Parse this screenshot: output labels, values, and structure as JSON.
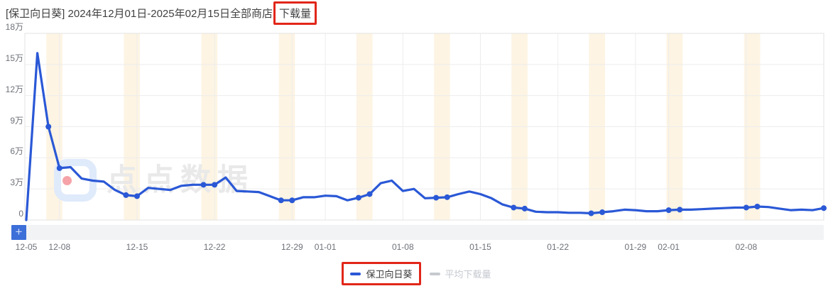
{
  "header": {
    "title_main": "[保卫向日葵] 2024年12月01日-2025年02月15日全部商店",
    "title_highlighted": "下载量"
  },
  "chart_data": {
    "type": "line",
    "title": "[保卫向日葵] 2024年12月01日-2025年02月15日全部商店下载量",
    "unit": "万",
    "ylim_wan": [
      0,
      18
    ],
    "y_tick_labels": [
      "18万",
      "15万",
      "12万",
      "9万",
      "6万",
      "3万",
      "0"
    ],
    "x_tick_labels": [
      "12-05",
      "12-08",
      "12-15",
      "12-22",
      "12-29",
      "01-01",
      "01-08",
      "01-15",
      "01-22",
      "01-29",
      "02-01",
      "02-08"
    ],
    "grid": true,
    "legend_position": "bottom",
    "weekend_bands_highlighted": true,
    "x": [
      "12-05",
      "12-06",
      "12-07",
      "12-08",
      "12-09",
      "12-10",
      "12-11",
      "12-12",
      "12-13",
      "12-14",
      "12-15",
      "12-16",
      "12-17",
      "12-18",
      "12-19",
      "12-20",
      "12-21",
      "12-22",
      "12-23",
      "12-24",
      "12-25",
      "12-26",
      "12-27",
      "12-28",
      "12-29",
      "12-30",
      "12-31",
      "01-01",
      "01-02",
      "01-03",
      "01-04",
      "01-05",
      "01-06",
      "01-07",
      "01-08",
      "01-09",
      "01-10",
      "01-11",
      "01-12",
      "01-13",
      "01-14",
      "01-15",
      "01-16",
      "01-17",
      "01-18",
      "01-19",
      "01-20",
      "01-21",
      "01-22",
      "01-23",
      "01-24",
      "01-25",
      "01-26",
      "01-27",
      "01-28",
      "01-29",
      "01-30",
      "01-31",
      "02-01",
      "02-02",
      "02-03",
      "02-04",
      "02-05",
      "02-06",
      "02-07",
      "02-08",
      "02-09",
      "02-10",
      "02-11",
      "02-12",
      "02-13",
      "02-14",
      "02-15"
    ],
    "series": [
      {
        "name": "保卫向日葵",
        "color": "#2a58d6",
        "selected": true,
        "values_wan": [
          0,
          16.1,
          9.0,
          5.0,
          5.1,
          4.0,
          3.8,
          3.7,
          2.9,
          2.4,
          2.3,
          3.1,
          3.0,
          2.9,
          3.3,
          3.4,
          3.4,
          3.4,
          4.1,
          2.8,
          2.75,
          2.7,
          2.3,
          1.9,
          1.9,
          2.2,
          2.2,
          2.35,
          2.3,
          1.9,
          2.15,
          2.5,
          3.55,
          3.8,
          2.8,
          3.0,
          2.1,
          2.15,
          2.2,
          2.5,
          2.75,
          2.5,
          2.1,
          1.5,
          1.2,
          1.1,
          0.8,
          0.75,
          0.75,
          0.7,
          0.7,
          0.65,
          0.75,
          0.85,
          1.0,
          0.95,
          0.85,
          0.85,
          0.95,
          1.0,
          1.0,
          1.05,
          1.1,
          1.15,
          1.2,
          1.2,
          1.3,
          1.25,
          1.1,
          0.95,
          1.0,
          0.95,
          1.15
        ]
      },
      {
        "name": "平均下载量",
        "color": "#c6c9ce",
        "selected": false,
        "values_wan": []
      }
    ]
  },
  "legend": {
    "items": [
      {
        "label": "保卫向日葵",
        "color": "#2a58d6",
        "muted": false,
        "annotated": true
      },
      {
        "label": "平均下载量",
        "color": "#c6c9ce",
        "muted": true,
        "annotated": false
      }
    ]
  },
  "watermark": {
    "text": "点点数据"
  },
  "toolbar": {
    "plus_label": "+"
  },
  "colors": {
    "line": "#2a58d6",
    "weekend_band": "#fdf4e3",
    "grid": "#ededed",
    "axis_border": "#e3e3e3",
    "annotation_red": "#e12619",
    "axis_text": "#6e7179",
    "title_text": "#414141",
    "muted_text": "#c4c8cf",
    "watermark_text": "#e9e9e9",
    "plus_bg": "#3d6fd9",
    "track_bg": "#f2f3f5"
  }
}
